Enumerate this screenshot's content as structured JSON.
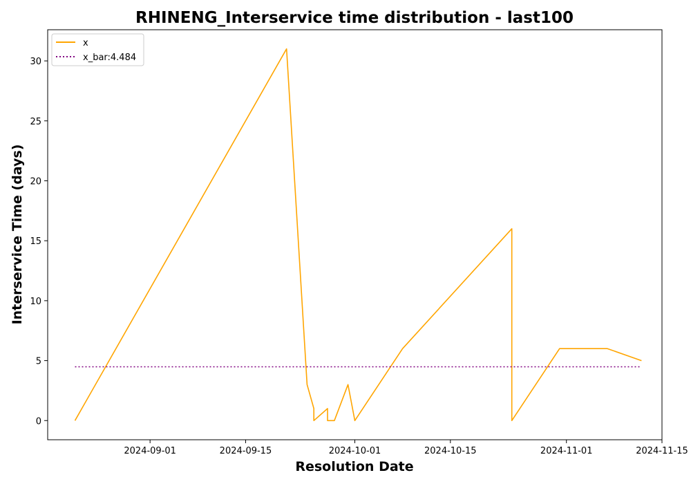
{
  "chart_data": {
    "type": "line",
    "title": "RHINENG_Interservice time distribution - last100",
    "xlabel": "Resolution Date",
    "ylabel": "Interservice Time (days)",
    "x_ticks": [
      "2024-09-01",
      "2024-09-15",
      "2024-10-01",
      "2024-10-15",
      "2024-11-01",
      "2024-11-15"
    ],
    "y_ticks": [
      0,
      5,
      10,
      15,
      20,
      25,
      30
    ],
    "xlim": [
      "2024-08-17",
      "2024-11-15"
    ],
    "ylim": [
      -1.6,
      32.6
    ],
    "legend_position": "upper-left",
    "grid": false,
    "series": [
      {
        "name": "x",
        "color": "#ffa500",
        "style": "solid",
        "points": [
          {
            "x": "2024-08-21",
            "y": 0
          },
          {
            "x": "2024-09-21",
            "y": 31
          },
          {
            "x": "2024-09-24",
            "y": 3
          },
          {
            "x": "2024-09-25",
            "y": 1
          },
          {
            "x": "2024-09-25",
            "y": 0
          },
          {
            "x": "2024-09-27",
            "y": 1
          },
          {
            "x": "2024-09-27",
            "y": 0
          },
          {
            "x": "2024-09-28",
            "y": 0
          },
          {
            "x": "2024-09-30",
            "y": 3
          },
          {
            "x": "2024-10-01",
            "y": 0
          },
          {
            "x": "2024-10-08",
            "y": 6
          },
          {
            "x": "2024-10-24",
            "y": 16
          },
          {
            "x": "2024-10-24",
            "y": 0
          },
          {
            "x": "2024-10-31",
            "y": 6
          },
          {
            "x": "2024-11-07",
            "y": 6
          },
          {
            "x": "2024-11-12",
            "y": 5
          }
        ]
      },
      {
        "name": "x_bar:4.484",
        "color": "#800080",
        "style": "dotted",
        "points": [
          {
            "x": "2024-08-21",
            "y": 4.484
          },
          {
            "x": "2024-11-12",
            "y": 4.484
          }
        ]
      }
    ]
  }
}
